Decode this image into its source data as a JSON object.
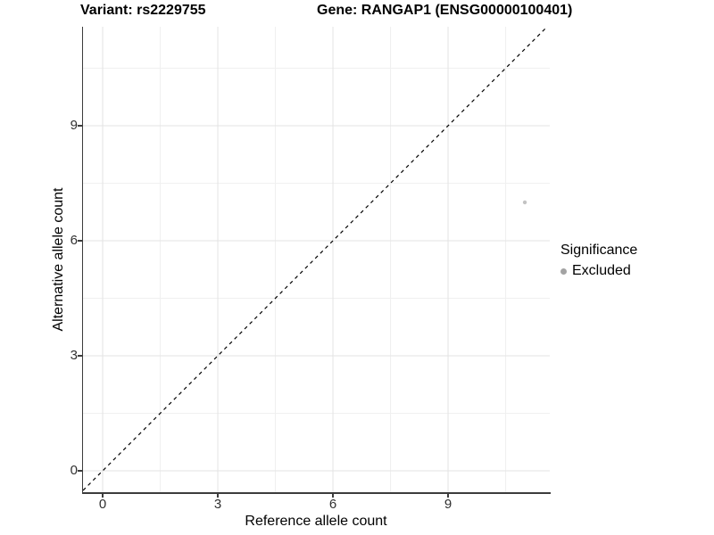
{
  "header": {
    "variant_title": "Variant: rs2229755",
    "gene_title": "Gene: RANGAP1 (ENSG00000100401)"
  },
  "axes": {
    "x": {
      "title": "Reference allele count"
    },
    "y": {
      "title": "Alternative allele count"
    }
  },
  "legend": {
    "title": "Significance",
    "items": [
      {
        "label": "Excluded",
        "color": "#a3a3a3"
      }
    ]
  },
  "colors": {
    "background": "#ffffff",
    "axis_line": "#3c3c3c",
    "tick_text": "#303030",
    "grid_major": "#e3e3e3",
    "grid_minor": "#f0f0f0",
    "reference_line": "#000000",
    "point_excluded": "#c3c3c3"
  },
  "chart_data": {
    "type": "scatter",
    "title": "Variant: rs2229755 | Gene: RANGAP1 (ENSG00000100401)",
    "xlabel": "Reference allele count",
    "ylabel": "Alternative allele count",
    "xlim": [
      -0.512,
      11.65
    ],
    "ylim": [
      -0.558,
      11.581
    ],
    "x_ticks": [
      0,
      3,
      6,
      9
    ],
    "y_ticks": [
      0,
      3,
      6,
      9
    ],
    "x_minor_ticks": [
      1.5,
      4.5,
      7.5,
      10.5
    ],
    "y_minor_ticks": [
      1.5,
      4.5,
      7.5,
      10.5
    ],
    "grid": true,
    "legend_position": "right",
    "series": [
      {
        "name": "Excluded",
        "points": [
          {
            "x": 11,
            "y": 7
          }
        ],
        "color": "#c3c3c3",
        "point_radius": 2.2
      }
    ],
    "reference_line": {
      "equation": "y = x",
      "style": "dashed",
      "color": "#000000"
    }
  }
}
